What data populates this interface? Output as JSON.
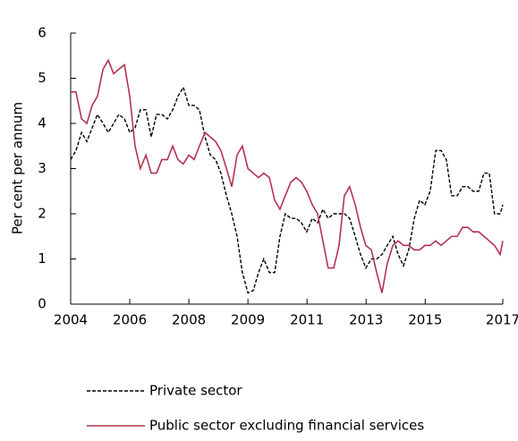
{
  "chart_data": {
    "type": "line",
    "y_label": "Per cent per annum",
    "x": [
      2004.0,
      2004.16,
      2004.33,
      2004.49,
      2004.65,
      2004.81,
      2004.98,
      2005.14,
      2005.3,
      2005.46,
      2005.63,
      2005.79,
      2005.95,
      2006.11,
      2006.28,
      2006.44,
      2006.6,
      2006.76,
      2006.93,
      2007.09,
      2007.25,
      2007.41,
      2007.58,
      2007.74,
      2007.9,
      2008.07,
      2008.23,
      2008.39,
      2008.55,
      2008.72,
      2008.88,
      2009.04,
      2009.2,
      2009.37,
      2009.53,
      2009.69,
      2009.85,
      2010.02,
      2010.18,
      2010.34,
      2010.5,
      2010.67,
      2010.83,
      2010.99,
      2011.15,
      2011.32,
      2011.48,
      2011.64,
      2011.8,
      2011.97,
      2012.13,
      2012.29,
      2012.45,
      2012.62,
      2012.78,
      2012.94,
      2013.11,
      2013.27,
      2013.43,
      2013.59,
      2013.76,
      2013.92,
      2014.08,
      2014.24,
      2014.41,
      2014.57,
      2014.73,
      2014.89,
      2015.06,
      2015.22,
      2015.38,
      2015.54,
      2015.71,
      2015.87,
      2016.03,
      2016.19,
      2016.36,
      2016.52,
      2016.68,
      2016.84,
      2017.01,
      2017.09
    ],
    "series": [
      {
        "name": "Private sector",
        "color": "#000000",
        "dash": true,
        "values": [
          3.2,
          3.4,
          3.8,
          3.6,
          3.9,
          4.2,
          4.0,
          3.8,
          4.0,
          4.2,
          4.1,
          3.8,
          3.9,
          4.3,
          4.3,
          3.7,
          4.2,
          4.2,
          4.1,
          4.3,
          4.6,
          4.8,
          4.4,
          4.4,
          4.3,
          3.7,
          3.3,
          3.2,
          2.9,
          2.4,
          2.0,
          1.5,
          0.7,
          0.25,
          0.3,
          0.7,
          1.0,
          0.7,
          0.7,
          1.5,
          2.0,
          1.9,
          1.9,
          1.8,
          1.6,
          1.9,
          1.8,
          2.1,
          1.9,
          2.0,
          2.0,
          2.0,
          1.9,
          1.5,
          1.1,
          0.8,
          1.0,
          1.0,
          1.1,
          1.3,
          1.5,
          1.1,
          0.85,
          1.2,
          1.9,
          2.3,
          2.2,
          2.5,
          3.4,
          3.4,
          3.2,
          2.4,
          2.4,
          2.6,
          2.6,
          2.5,
          2.5,
          2.9,
          2.9,
          2.0,
          2.0,
          2.2
        ]
      },
      {
        "name": "Public sector excluding financial services",
        "color": "#b3334f",
        "dash": false,
        "values": [
          4.7,
          4.7,
          4.1,
          4.0,
          4.4,
          4.6,
          5.2,
          5.4,
          5.1,
          5.2,
          5.3,
          4.6,
          3.5,
          3.0,
          3.3,
          2.9,
          2.9,
          3.2,
          3.2,
          3.5,
          3.2,
          3.1,
          3.3,
          3.2,
          3.5,
          3.8,
          3.7,
          3.6,
          3.4,
          3.0,
          2.6,
          3.3,
          3.5,
          3.0,
          2.9,
          2.8,
          2.9,
          2.8,
          2.3,
          2.1,
          2.4,
          2.7,
          2.8,
          2.7,
          2.5,
          2.2,
          2.0,
          1.4,
          0.8,
          0.8,
          1.3,
          2.4,
          2.6,
          2.2,
          1.7,
          1.3,
          1.2,
          0.7,
          0.25,
          0.9,
          1.3,
          1.4,
          1.3,
          1.3,
          1.2,
          1.2,
          1.3,
          1.3,
          1.4,
          1.3,
          1.4,
          1.5,
          1.5,
          1.7,
          1.7,
          1.6,
          1.6,
          1.5,
          1.4,
          1.3,
          1.1,
          1.4
        ]
      }
    ],
    "xlim": [
      2004,
      2017.09
    ],
    "xticks": [
      {
        "value": 2004,
        "label": "2004"
      },
      {
        "value": 2005.79,
        "label": "2006"
      },
      {
        "value": 2007.58,
        "label": "2008"
      },
      {
        "value": 2009.37,
        "label": "2009"
      },
      {
        "value": 2011.16,
        "label": "2011"
      },
      {
        "value": 2012.95,
        "label": "2013"
      },
      {
        "value": 2014.74,
        "label": "2015"
      },
      {
        "value": 2017.09,
        "label": "2017"
      }
    ],
    "ylim": [
      0,
      6
    ],
    "yticks": [
      0,
      1,
      2,
      3,
      4,
      5,
      6
    ]
  }
}
